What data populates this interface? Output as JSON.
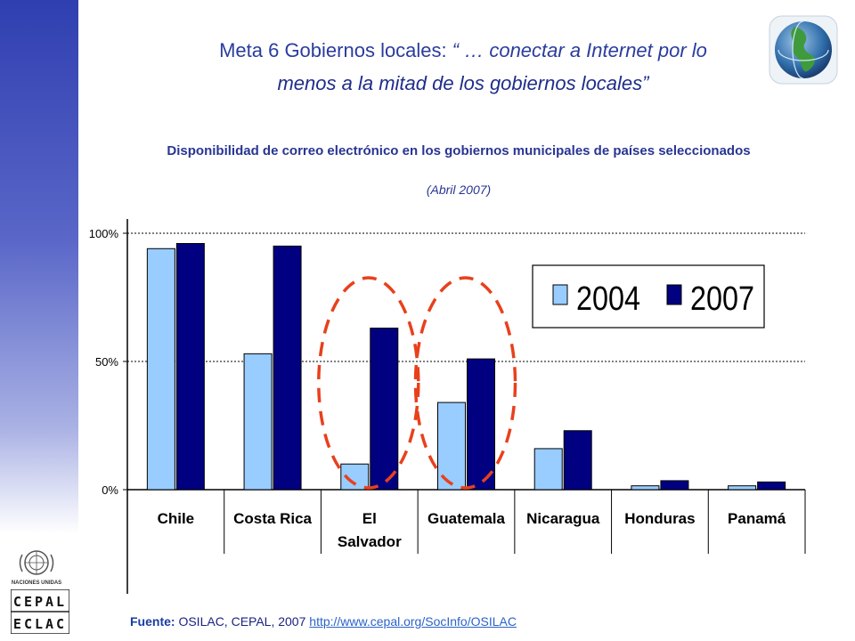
{
  "slide": {
    "title_prefix": "Meta 6 Gobiernos locales: ",
    "title_quote": "“ … conectar a Internet por lo",
    "title_line2": "menos a la mitad de los gobiernos locales”"
  },
  "chart_heading": {
    "title": "Disponibilidad de correo electrónico en los gobiernos municipales de países seleccionados",
    "subtitle": "(Abril  2007)"
  },
  "footer": {
    "source_label": "Fuente:",
    "source_text": " OSILAC, CEPAL, 2007 ",
    "source_link": "http://www.cepal.org/SocInfo/OSILAC"
  },
  "logos": {
    "un_text": "NACIONES UNIDAS",
    "cepal_top": "CEPAL",
    "cepal_bottom": "ECLAC"
  },
  "colors": {
    "series_2004": "#99ccff",
    "series_2007": "#000080",
    "highlight": "#e8401c",
    "title": "#2a3c9e"
  },
  "chart_data": {
    "type": "bar",
    "categories": [
      "Chile",
      "Costa Rica",
      "El Salvador",
      "Guatemala",
      "Nicaragua",
      "Honduras",
      "Panamá"
    ],
    "series": [
      {
        "name": "2004",
        "values": [
          94,
          53,
          10,
          34,
          16,
          1.5,
          1.5
        ]
      },
      {
        "name": "2007",
        "values": [
          96,
          95,
          63,
          51,
          23,
          3.5,
          3
        ]
      }
    ],
    "yticks": [
      "0%",
      "50%",
      "100%"
    ],
    "ylim": [
      0,
      100
    ],
    "grid": true,
    "legend_position": "top-right",
    "highlighted_categories": [
      "El Salvador",
      "Guatemala"
    ]
  }
}
